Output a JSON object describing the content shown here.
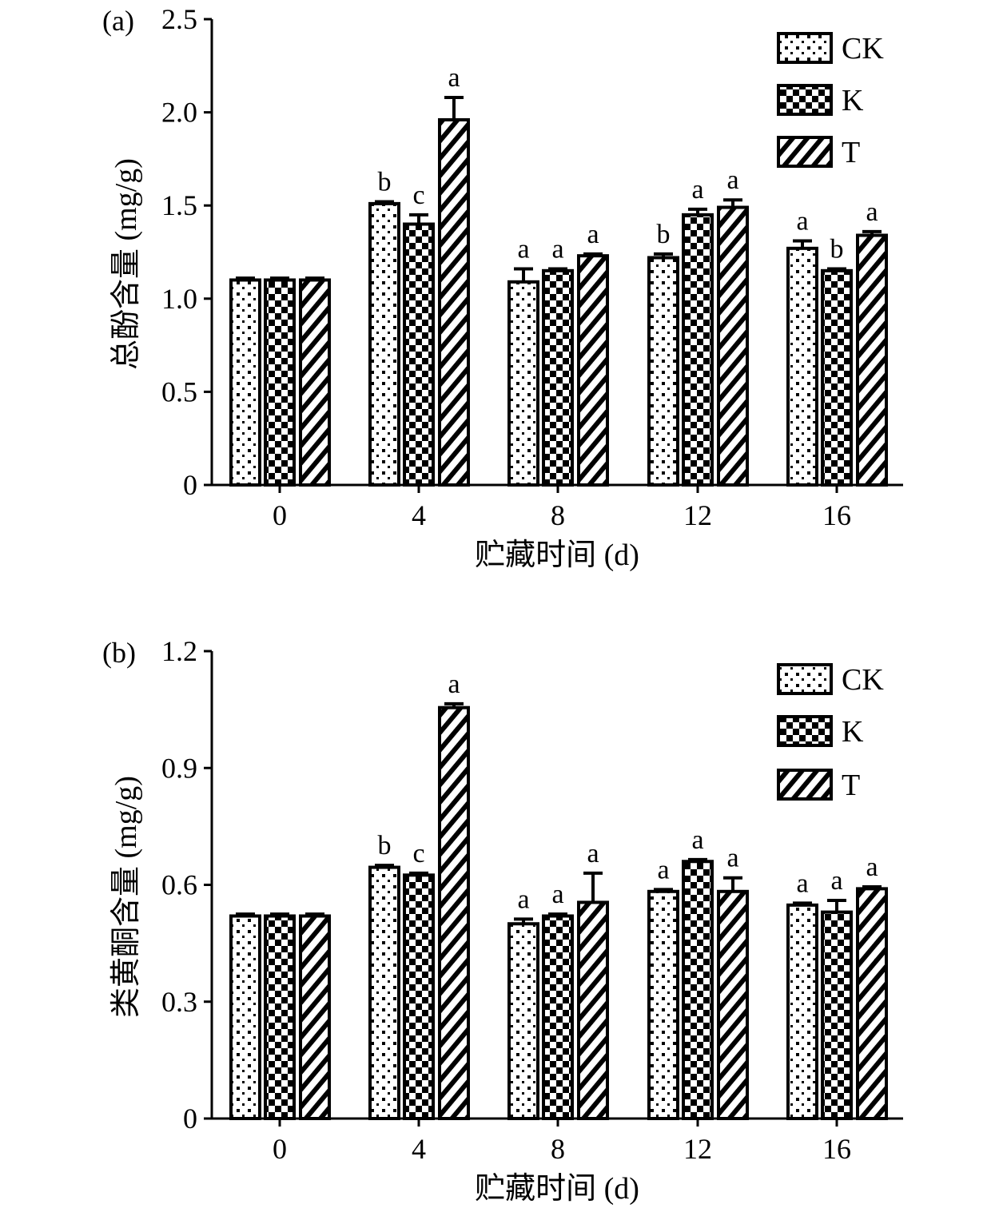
{
  "chart_data": [
    {
      "panel_label": "(a)",
      "type": "bar",
      "xlabel": "贮藏时间 (d)",
      "ylabel": "总酚含量 (mg/g)",
      "ylim": [
        0,
        2.5
      ],
      "yticks": [
        0,
        0.5,
        1.0,
        1.5,
        2.0,
        2.5
      ],
      "ytick_labels": [
        "0",
        "0.5",
        "1.0",
        "1.5",
        "2.0",
        "2.5"
      ],
      "categories": [
        "0",
        "4",
        "8",
        "12",
        "16"
      ],
      "legend_position": "top-right",
      "grid": false,
      "series": [
        {
          "name": "CK",
          "pattern": "dots",
          "values": [
            1.1,
            1.51,
            1.09,
            1.22,
            1.27
          ],
          "errors": [
            0.01,
            0.01,
            0.07,
            0.02,
            0.04
          ],
          "letters": [
            "",
            "b",
            "a",
            "b",
            "a"
          ]
        },
        {
          "name": "K",
          "pattern": "checker",
          "values": [
            1.1,
            1.4,
            1.15,
            1.45,
            1.15
          ],
          "errors": [
            0.01,
            0.05,
            0.01,
            0.03,
            0.01
          ],
          "letters": [
            "",
            "c",
            "a",
            "a",
            "b"
          ]
        },
        {
          "name": "T",
          "pattern": "hatch",
          "values": [
            1.1,
            1.96,
            1.23,
            1.49,
            1.34
          ],
          "errors": [
            0.01,
            0.12,
            0.01,
            0.04,
            0.02
          ],
          "letters": [
            "",
            "a",
            "a",
            "a",
            "a"
          ]
        }
      ]
    },
    {
      "panel_label": "(b)",
      "type": "bar",
      "xlabel": "贮藏时间 (d)",
      "ylabel": "类黄酮含量 (mg/g)",
      "ylim": [
        0,
        1.2
      ],
      "yticks": [
        0,
        0.3,
        0.6,
        0.9,
        1.2
      ],
      "ytick_labels": [
        "0",
        "0.3",
        "0.6",
        "0.9",
        "1.2"
      ],
      "categories": [
        "0",
        "4",
        "8",
        "12",
        "16"
      ],
      "legend_position": "top-right",
      "grid": false,
      "series": [
        {
          "name": "CK",
          "pattern": "dots",
          "values": [
            0.52,
            0.645,
            0.5,
            0.583,
            0.548
          ],
          "errors": [
            0.005,
            0.005,
            0.012,
            0.005,
            0.005
          ],
          "letters": [
            "",
            "b",
            "a",
            "a",
            "a"
          ]
        },
        {
          "name": "K",
          "pattern": "checker",
          "values": [
            0.52,
            0.625,
            0.52,
            0.66,
            0.53
          ],
          "errors": [
            0.005,
            0.005,
            0.005,
            0.005,
            0.03
          ],
          "letters": [
            "",
            "c",
            "a",
            "a",
            "a"
          ]
        },
        {
          "name": "T",
          "pattern": "hatch",
          "values": [
            0.52,
            1.055,
            0.555,
            0.583,
            0.59
          ],
          "errors": [
            0.005,
            0.01,
            0.075,
            0.035,
            0.005
          ],
          "letters": [
            "",
            "a",
            "a",
            "a",
            "a"
          ]
        }
      ]
    }
  ]
}
